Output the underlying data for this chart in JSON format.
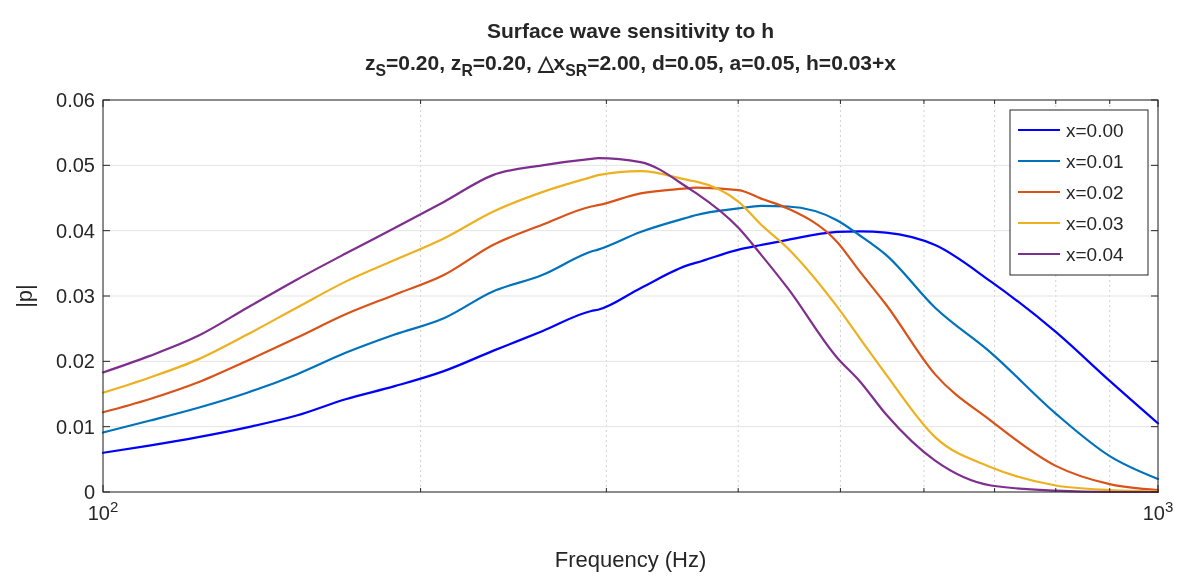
{
  "chart_data": {
    "type": "line",
    "title": "Surface wave sensitivity to h",
    "subtitle": "z$_{S}$=0.20, z$_{R}$=0.20, △x$_{SR}$=2.00, d=0.05, a=0.05, h=0.03+x",
    "xlabel": "Frequency (Hz)",
    "ylabel": "|p|",
    "x": [
      100,
      110.6,
      123.1,
      137,
      152.6,
      169.8,
      189,
      210.4,
      234.2,
      260.8,
      290.3,
      294.6,
      323.2,
      359.7,
      365.2,
      400.4,
      420.6,
      445.7,
      496.2,
      521.3,
      552.3,
      614.8,
      694.6,
      800,
      900,
      1000
    ],
    "series": [
      {
        "name": "x=0.00",
        "color": "#0000ff",
        "values": [
          0.006,
          0.0071,
          0.0084,
          0.0099,
          0.0117,
          0.0142,
          0.0162,
          0.0185,
          0.0216,
          0.0246,
          0.0277,
          0.0279,
          0.0312,
          0.0348,
          0.0351,
          0.0371,
          0.0378,
          0.0386,
          0.0398,
          0.0399,
          0.0397,
          0.0378,
          0.0322,
          0.0245,
          0.017,
          0.0105
        ]
      },
      {
        "name": "x=0.01",
        "color": "#0072bd",
        "values": [
          0.0091,
          0.0109,
          0.0129,
          0.0152,
          0.018,
          0.0213,
          0.0241,
          0.0266,
          0.0307,
          0.0332,
          0.0368,
          0.0371,
          0.0398,
          0.0421,
          0.0424,
          0.0434,
          0.0438,
          0.0437,
          0.0416,
          0.0393,
          0.0363,
          0.0282,
          0.0213,
          0.012,
          0.0055,
          0.002
        ]
      },
      {
        "name": "x=0.02",
        "color": "#d95319",
        "values": [
          0.0122,
          0.0142,
          0.0168,
          0.0201,
          0.0236,
          0.0272,
          0.0302,
          0.0332,
          0.0378,
          0.0409,
          0.0437,
          0.0439,
          0.0457,
          0.0465,
          0.0466,
          0.0462,
          0.0449,
          0.0434,
          0.0383,
          0.0338,
          0.0287,
          0.018,
          0.0109,
          0.004,
          0.0012,
          0.0003
        ]
      },
      {
        "name": "x=0.03",
        "color": "#edb120",
        "values": [
          0.0152,
          0.0175,
          0.0203,
          0.0241,
          0.0282,
          0.0322,
          0.0355,
          0.0388,
          0.0429,
          0.0459,
          0.0482,
          0.0485,
          0.0491,
          0.0477,
          0.0475,
          0.0444,
          0.0409,
          0.0373,
          0.0284,
          0.0236,
          0.018,
          0.0084,
          0.0038,
          0.001,
          0.0003,
          0.0001
        ]
      },
      {
        "name": "x=0.04",
        "color": "#7e2f8e",
        "values": [
          0.0183,
          0.0208,
          0.0239,
          0.0282,
          0.0325,
          0.0365,
          0.0404,
          0.0444,
          0.0485,
          0.05,
          0.051,
          0.0511,
          0.0505,
          0.0464,
          0.0457,
          0.0404,
          0.0363,
          0.0312,
          0.0206,
          0.017,
          0.0119,
          0.0048,
          0.001,
          0.0002,
          0,
          0
        ]
      }
    ],
    "xlim": [
      100,
      1000
    ],
    "xticks": [
      {
        "value": 100,
        "label": "10$^{2}$"
      },
      {
        "value": 200,
        "label": null
      },
      {
        "value": 300,
        "label": null
      },
      {
        "value": 400,
        "label": null
      },
      {
        "value": 500,
        "label": null
      },
      {
        "value": 600,
        "label": null
      },
      {
        "value": 700,
        "label": null
      },
      {
        "value": 800,
        "label": null
      },
      {
        "value": 900,
        "label": null
      },
      {
        "value": 1000,
        "label": "10$^{3}$"
      }
    ],
    "ylim": [
      0,
      0.06
    ],
    "yticks": [
      0,
      0.01,
      0.02,
      0.03,
      0.04,
      0.05,
      0.06
    ],
    "log": "x",
    "grid": true,
    "legend": "top right"
  }
}
